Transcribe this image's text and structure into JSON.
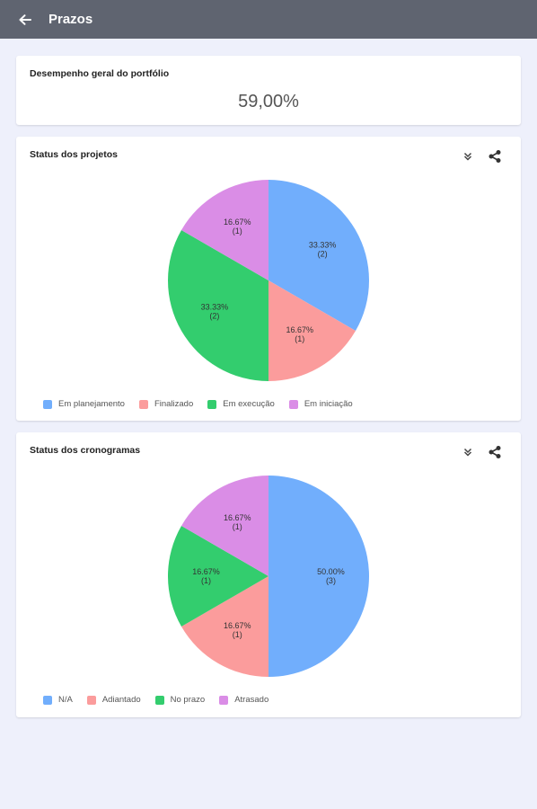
{
  "appbar": {
    "title": "Prazos",
    "back_icon": "arrow-left-icon"
  },
  "overall": {
    "title": "Desempenho geral do portfólio",
    "value": "59,00%"
  },
  "colors": {
    "blue": "#71aefc",
    "red": "#fb9c9c",
    "green": "#33cd6e",
    "purple": "#da8de6"
  },
  "chart_data": [
    {
      "type": "pie",
      "title": "Status dos projetos",
      "slices": [
        {
          "label": "Em planejamento",
          "value": 2,
          "percent": "33.33%",
          "count": "(2)",
          "color": "#71aefc"
        },
        {
          "label": "Finalizado",
          "value": 1,
          "percent": "16.67%",
          "count": "(1)",
          "color": "#fb9c9c"
        },
        {
          "label": "Em execução",
          "value": 2,
          "percent": "33.33%",
          "count": "(2)",
          "color": "#33cd6e"
        },
        {
          "label": "Em iniciação",
          "value": 1,
          "percent": "16.67%",
          "count": "(1)",
          "color": "#da8de6"
        }
      ],
      "legend_position": "bottom"
    },
    {
      "type": "pie",
      "title": "Status dos cronogramas",
      "slices": [
        {
          "label": "N/A",
          "value": 3,
          "percent": "50.00%",
          "count": "(3)",
          "color": "#71aefc"
        },
        {
          "label": "Adiantado",
          "value": 1,
          "percent": "16.67%",
          "count": "(1)",
          "color": "#fb9c9c"
        },
        {
          "label": "No prazo",
          "value": 1,
          "percent": "16.67%",
          "count": "(1)",
          "color": "#33cd6e"
        },
        {
          "label": "Atrasado",
          "value": 1,
          "percent": "16.67%",
          "count": "(1)",
          "color": "#da8de6"
        }
      ],
      "legend_position": "bottom"
    }
  ],
  "card_actions": {
    "expand_icon": "double-chevron-down-icon",
    "share_icon": "share-icon"
  }
}
